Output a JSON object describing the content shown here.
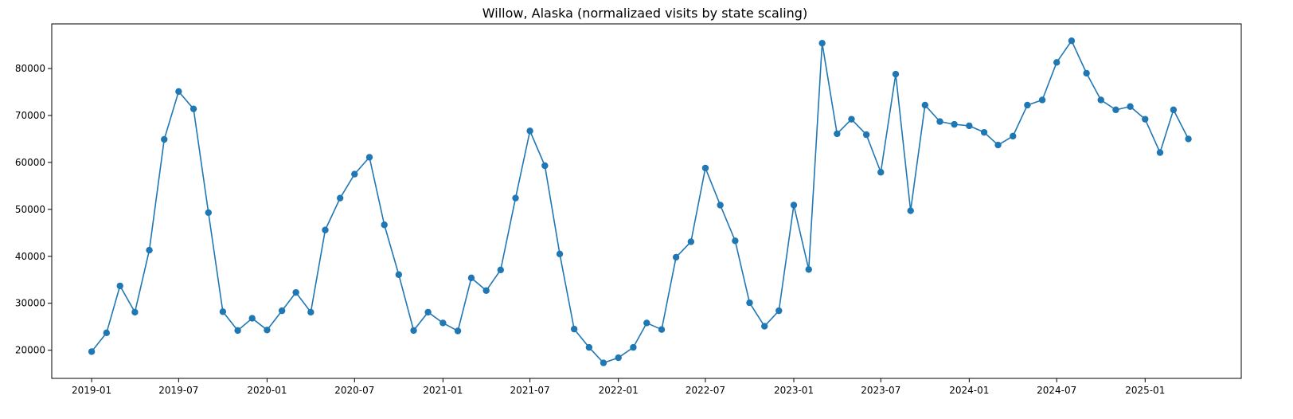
{
  "chart_data": {
    "type": "line",
    "title": "Willow, Alaska (normalizaed visits by state scaling)",
    "xlabel": "",
    "ylabel": "",
    "x_tick_labels": [
      "2019-01",
      "2019-07",
      "2020-01",
      "2020-07",
      "2021-01",
      "2021-07",
      "2022-01",
      "2022-07",
      "2023-01",
      "2023-07",
      "2024-01",
      "2024-07",
      "2025-01"
    ],
    "x_range": [
      "2018-10-10",
      "2025-07-20"
    ],
    "y_ticks": [
      20000,
      30000,
      40000,
      50000,
      60000,
      70000,
      80000
    ],
    "ylim": [
      14000,
      89500
    ],
    "grid": false,
    "marker": "circle",
    "colors": {
      "line": "#1f77b4",
      "axes": "#000000"
    },
    "series": [
      {
        "x": [
          "2019-01",
          "2019-02",
          "2019-03",
          "2019-04",
          "2019-05",
          "2019-06",
          "2019-07",
          "2019-08",
          "2019-09",
          "2019-10",
          "2019-11",
          "2019-12",
          "2020-01",
          "2020-02",
          "2020-03",
          "2020-04",
          "2020-05",
          "2020-06",
          "2020-07",
          "2020-08",
          "2020-09",
          "2020-10",
          "2020-11",
          "2020-12",
          "2021-01",
          "2021-02",
          "2021-03",
          "2021-04",
          "2021-05",
          "2021-06",
          "2021-07",
          "2021-08",
          "2021-09",
          "2021-10",
          "2021-11",
          "2021-12",
          "2022-01",
          "2022-02",
          "2022-03",
          "2022-04",
          "2022-05",
          "2022-06",
          "2022-07",
          "2022-08",
          "2022-09",
          "2022-10",
          "2022-11",
          "2022-12",
          "2023-01",
          "2023-02",
          "2023-03",
          "2023-04",
          "2023-05",
          "2023-06",
          "2023-07",
          "2023-08",
          "2023-09",
          "2023-10",
          "2023-11",
          "2023-12",
          "2024-01",
          "2024-02",
          "2024-03",
          "2024-04",
          "2024-05",
          "2024-06",
          "2024-07",
          "2024-08",
          "2024-09",
          "2024-10",
          "2024-11",
          "2024-12",
          "2025-01",
          "2025-02",
          "2025-03",
          "2025-04"
        ],
        "values": [
          19700,
          23700,
          33700,
          28100,
          41300,
          64900,
          75100,
          71400,
          49300,
          28200,
          24200,
          26800,
          24300,
          28400,
          32300,
          28100,
          45600,
          52400,
          57500,
          61100,
          46700,
          36100,
          24200,
          28100,
          25800,
          24100,
          35400,
          32700,
          37100,
          52400,
          66700,
          59300,
          40500,
          24500,
          20600,
          17300,
          18400,
          20600,
          25800,
          24400,
          39800,
          43100,
          58800,
          50900,
          43300,
          30100,
          25100,
          28400,
          50900,
          37200,
          85400,
          66100,
          69200,
          65900,
          57900,
          78800,
          49700,
          72200,
          68700,
          68100,
          67800,
          66400,
          63700,
          65600,
          72200,
          73300,
          81300,
          85900,
          79000,
          73300,
          71200,
          71900,
          69200,
          62100,
          71200,
          65000
        ]
      }
    ]
  }
}
